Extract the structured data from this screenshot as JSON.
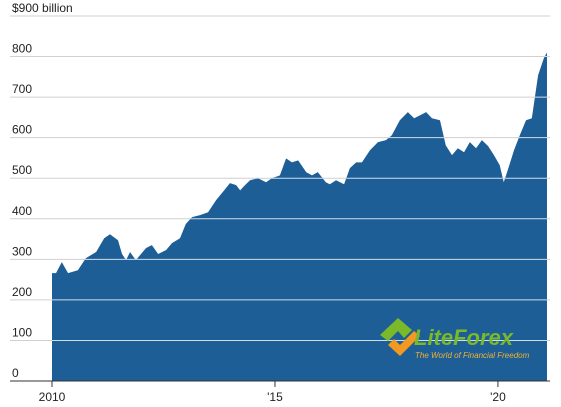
{
  "chart_data": {
    "type": "area",
    "color": "#1d5e97",
    "x": [
      2010.0,
      2010.09,
      2010.22,
      2010.36,
      2010.58,
      2010.76,
      2010.99,
      2011.17,
      2011.3,
      2011.48,
      2011.57,
      2011.66,
      2011.75,
      2011.88,
      2012.11,
      2012.24,
      2012.38,
      2012.56,
      2012.69,
      2012.87,
      2013.0,
      2013.14,
      2013.32,
      2013.5,
      2013.68,
      2013.86,
      2013.99,
      2014.13,
      2014.22,
      2014.3,
      2014.44,
      2014.62,
      2014.8,
      2014.93,
      2015.11,
      2015.25,
      2015.38,
      2015.52,
      2015.7,
      2015.83,
      2015.96,
      2016.14,
      2016.23,
      2016.37,
      2016.55,
      2016.68,
      2016.82,
      2016.95,
      2017.13,
      2017.31,
      2017.49,
      2017.62,
      2017.8,
      2017.98,
      2018.12,
      2018.25,
      2018.39,
      2018.52,
      2018.7,
      2018.83,
      2018.97,
      2019.1,
      2019.24,
      2019.37,
      2019.51,
      2019.64,
      2019.78,
      2019.91,
      2020.04,
      2020.13,
      2020.22,
      2020.36,
      2020.49,
      2020.63,
      2020.76,
      2020.9,
      2021.03,
      2021.1
    ],
    "values": [
      266,
      266,
      293,
      266,
      273,
      303,
      318,
      352,
      362,
      347,
      313,
      298,
      318,
      298,
      328,
      335,
      313,
      323,
      340,
      352,
      387,
      404,
      409,
      416,
      446,
      470,
      488,
      483,
      470,
      480,
      495,
      500,
      490,
      500,
      507,
      549,
      539,
      544,
      515,
      507,
      515,
      490,
      485,
      495,
      485,
      525,
      539,
      539,
      569,
      589,
      594,
      606,
      643,
      663,
      648,
      655,
      663,
      648,
      643,
      581,
      557,
      574,
      564,
      589,
      574,
      594,
      579,
      557,
      532,
      490,
      520,
      569,
      606,
      643,
      648,
      754,
      796,
      810
    ],
    "xlim": [
      2010,
      2021.1
    ],
    "xticks": [
      2010,
      {
        "value": 2015,
        "label": "'15"
      },
      {
        "value": 2020,
        "label": "'20"
      }
    ],
    "ylim": [
      0,
      900
    ],
    "yticks": [
      0,
      100,
      200,
      300,
      400,
      500,
      600,
      700,
      800,
      {
        "value": 900,
        "label": "$900 billion"
      }
    ],
    "grid": true,
    "watermark": {
      "brand": "LiteForex",
      "tagline": "The World of Financial Freedom"
    }
  }
}
